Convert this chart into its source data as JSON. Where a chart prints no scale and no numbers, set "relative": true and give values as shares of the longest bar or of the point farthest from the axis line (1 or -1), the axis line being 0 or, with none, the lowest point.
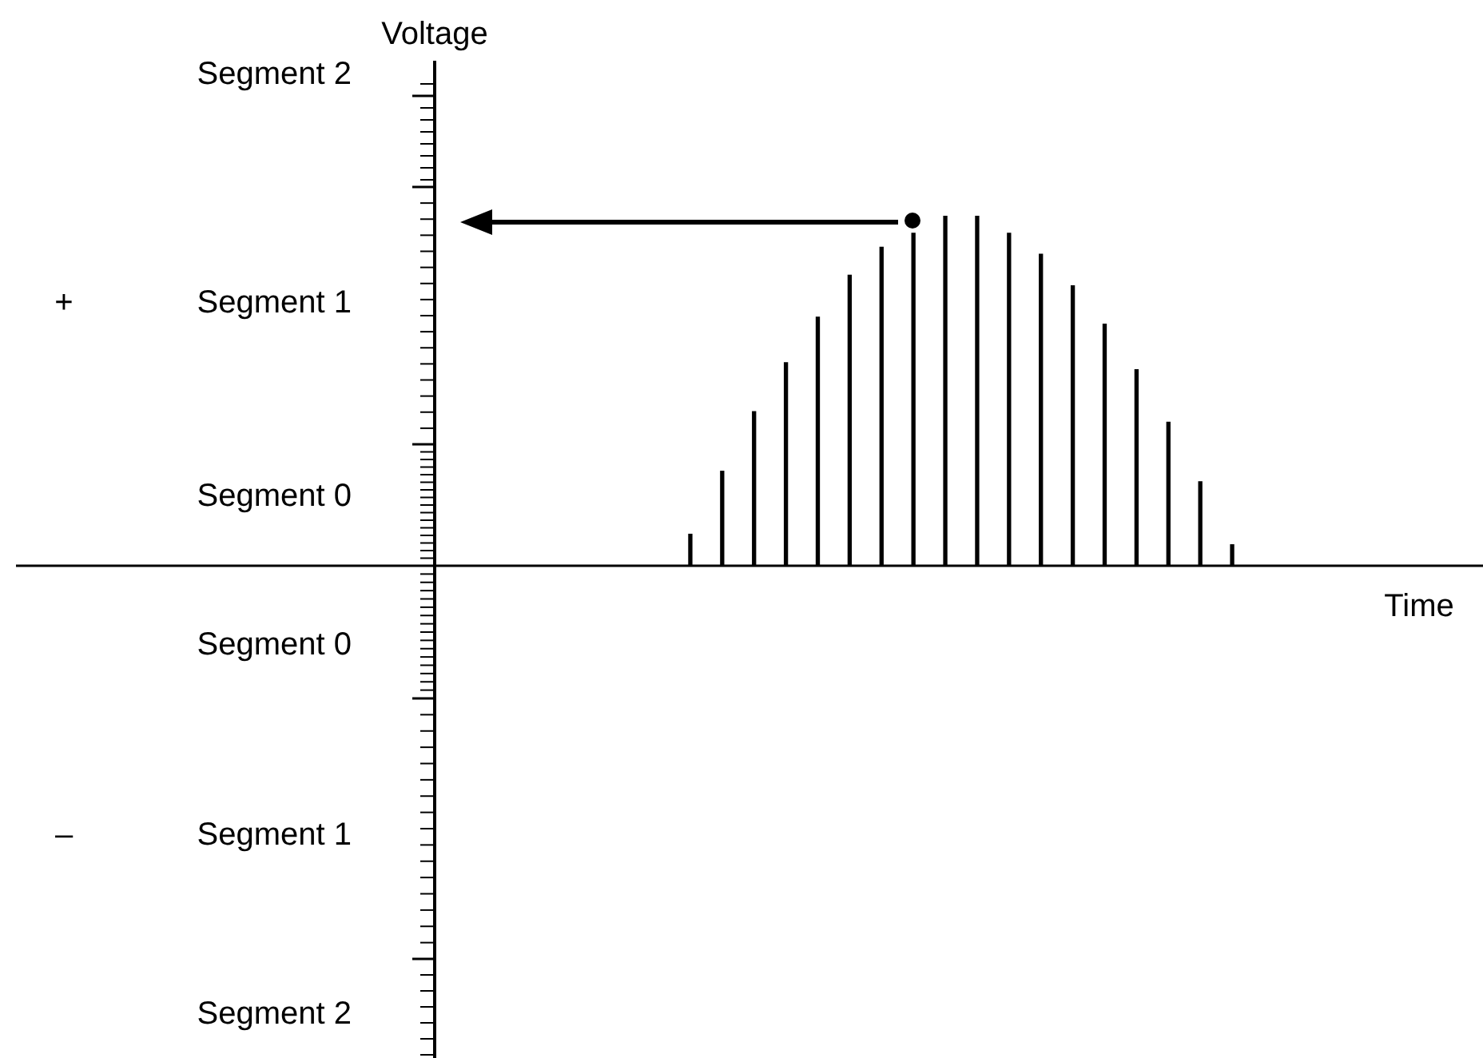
{
  "chart_data": {
    "type": "bar",
    "relative": true,
    "xlabel": "Time",
    "categories": [
      null,
      null,
      null,
      null,
      null,
      null,
      null,
      null,
      null,
      null,
      null,
      null,
      null,
      null,
      null,
      null,
      null,
      null
    ],
    "values": [
      0.09,
      0.27,
      0.44,
      0.58,
      0.71,
      0.83,
      0.91,
      0.95,
      1,
      1,
      0.95,
      0.89,
      0.8,
      0.69,
      0.56,
      0.41,
      0.24,
      0.06
    ],
    "color": "#000000",
    "annotations": [
      "Voltage",
      "Segment 2",
      "+",
      "Segment 1",
      "Segment 0",
      "Segment 0",
      "–",
      "Segment 1",
      "Segment 2"
    ]
  }
}
